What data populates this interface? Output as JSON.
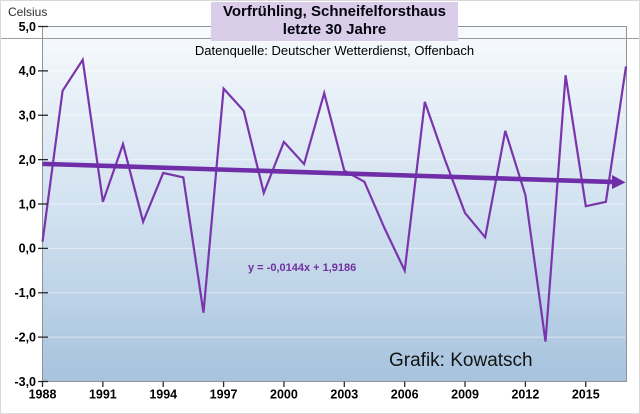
{
  "page": {
    "celsius_label": "Celsius",
    "title_line1": "Vorfrühling, Schneifelforsthaus",
    "title_line2": "letzte 30 Jahre",
    "subtitle": "Datenquelle: Deutscher Wetterdienst, Offenbach",
    "credit": "Grafik: Kowatsch"
  },
  "colors": {
    "line": "#7a35ad",
    "trend": "#6f2da8",
    "equation_text": "#7030a0",
    "title_bg": "#d9cde9",
    "grid": "rgba(255,255,255,0.5)",
    "tick": "#2a2a2a"
  },
  "chart_data": {
    "type": "line",
    "title": "Vorfrühling, Schneifelforsthaus — letzte 30 Jahre",
    "ylabel": "Celsius",
    "ylim": [
      -3,
      5
    ],
    "grid": "faint horizontal lines at each 1.0 °C",
    "legend": "none",
    "years": [
      1988,
      1989,
      1990,
      1991,
      1992,
      1993,
      1994,
      1995,
      1996,
      1997,
      1998,
      1999,
      2000,
      2001,
      2002,
      2003,
      2004,
      2005,
      2006,
      2007,
      2008,
      2009,
      2010,
      2011,
      2012,
      2013,
      2014,
      2015,
      2016,
      2017
    ],
    "values": [
      0.15,
      3.55,
      4.25,
      1.05,
      2.35,
      0.6,
      1.7,
      1.6,
      -1.45,
      3.6,
      3.1,
      1.25,
      2.4,
      1.9,
      3.5,
      1.75,
      1.5,
      0.45,
      -0.5,
      3.3,
      2.0,
      0.8,
      0.25,
      2.65,
      1.2,
      -2.1,
      3.9,
      0.95,
      1.05,
      4.1
    ],
    "x_ticks": [
      1988,
      1991,
      1994,
      1997,
      2000,
      2003,
      2006,
      2009,
      2012,
      2015
    ],
    "y_ticks": {
      "values": [
        5,
        4,
        3,
        2,
        1,
        0,
        -1,
        -2,
        -3
      ],
      "labels": [
        "5,0",
        "4,0",
        "3,0",
        "2,0",
        "1,0",
        "0,0",
        "-1,0",
        "-2,0",
        "-3,0"
      ]
    },
    "trend": {
      "equation_label": "y = -0,0144x + 1,9186",
      "slope": -0.0144,
      "intercept": 1.9186
    }
  }
}
